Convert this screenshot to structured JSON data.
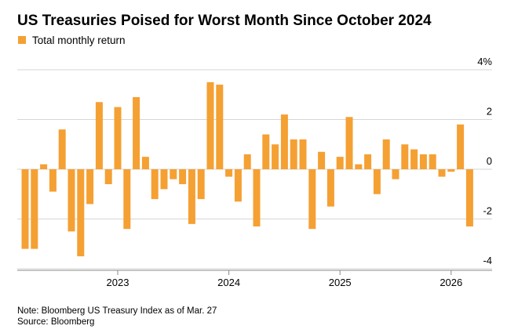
{
  "chart_data": {
    "type": "bar",
    "title": "US Treasuries Poised for Worst Month Since October 2024",
    "series": [
      {
        "name": "Total monthly return",
        "color": "#f5a033",
        "values": [
          -3.2,
          -3.2,
          0.2,
          -0.9,
          1.6,
          -2.5,
          -3.5,
          -1.4,
          2.7,
          -0.6,
          2.5,
          -2.4,
          2.9,
          0.5,
          -1.2,
          -0.8,
          -0.4,
          -0.6,
          -2.2,
          -1.2,
          3.5,
          3.4,
          -0.3,
          -1.3,
          0.6,
          -2.3,
          1.4,
          1.0,
          2.2,
          1.2,
          1.2,
          -2.4,
          0.7,
          -1.5,
          0.5,
          2.1,
          0.2,
          0.6,
          -1.0,
          1.2,
          -0.4,
          1.0,
          0.8,
          0.6,
          0.6,
          -0.3,
          -0.1,
          1.8,
          -2.3
        ]
      }
    ],
    "categories": [
      null,
      null,
      null,
      null,
      null,
      null,
      null,
      null,
      null,
      null,
      "2023",
      null,
      null,
      null,
      null,
      null,
      null,
      null,
      null,
      null,
      null,
      null,
      "2024",
      null,
      null,
      null,
      null,
      null,
      null,
      null,
      null,
      null,
      null,
      null,
      "2025",
      null,
      null,
      null,
      null,
      null,
      null,
      null,
      null,
      null,
      null,
      null,
      "2026",
      null,
      null
    ],
    "ylim": [
      -4,
      4
    ],
    "yticks": [
      {
        "value": 4,
        "label": "4%"
      },
      2,
      0,
      -2,
      -4
    ],
    "grid": true,
    "notes": [
      "Note: Bloomberg US Treasury Index as of Mar. 27",
      "Source: Bloomberg"
    ]
  }
}
